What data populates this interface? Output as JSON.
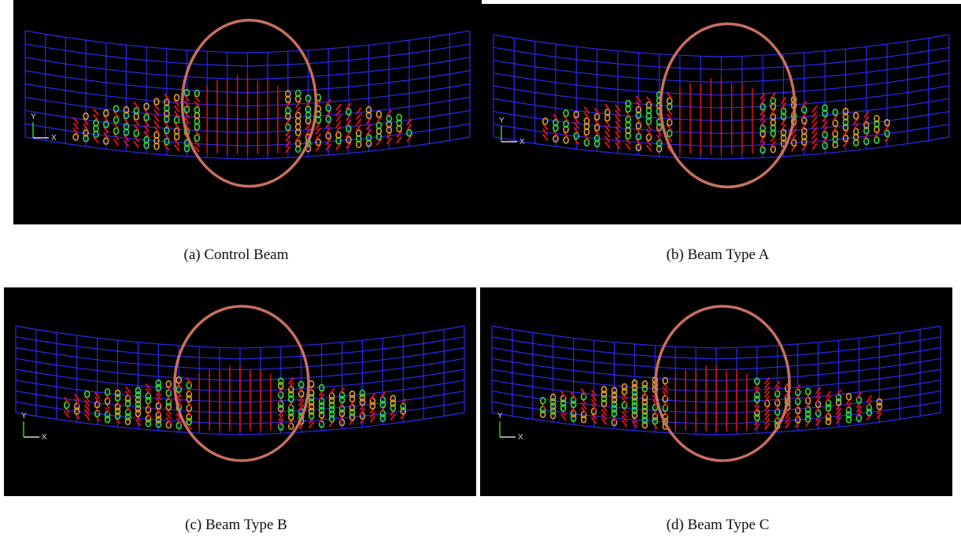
{
  "panels": [
    {
      "caption": "(a) Control Beam",
      "axis_y": "Y",
      "axis_x": "X"
    },
    {
      "caption": "(b) Beam Type A",
      "axis_y": "Y",
      "axis_x": "X"
    },
    {
      "caption": "(c) Beam Type B",
      "axis_y": "Y",
      "axis_x": "X"
    },
    {
      "caption": "(d) Beam Type C",
      "axis_y": "Y",
      "axis_x": "X"
    }
  ]
}
